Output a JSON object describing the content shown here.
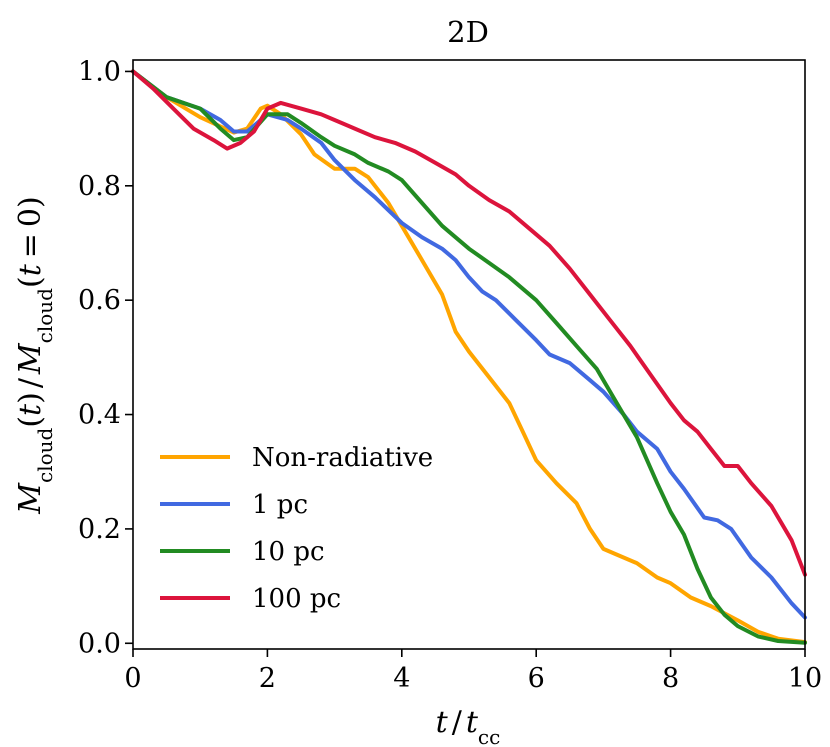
{
  "chart_data": {
    "type": "line",
    "title": "2D",
    "xlabel": "t / t_cc",
    "ylabel": "M_cloud(t) / M_cloud(t = 0)",
    "xlim": [
      0,
      10
    ],
    "ylim": [
      -0.01,
      1.02
    ],
    "xticks": [
      "0",
      "2",
      "4",
      "6",
      "8",
      "10"
    ],
    "yticks": [
      "0.0",
      "0.2",
      "0.4",
      "0.6",
      "0.8",
      "1.0"
    ],
    "xtick_values": [
      0,
      2,
      4,
      6,
      8,
      10
    ],
    "ytick_values": [
      0.0,
      0.2,
      0.4,
      0.6,
      0.8,
      1.0
    ],
    "legend_position": "lower-left",
    "series": [
      {
        "name": "Non-radiative",
        "color": "#ffa500",
        "x": [
          0,
          0.5,
          1.0,
          1.5,
          1.7,
          1.9,
          2.0,
          2.2,
          2.5,
          2.7,
          3.0,
          3.3,
          3.5,
          3.8,
          4.0,
          4.3,
          4.6,
          4.8,
          5.0,
          5.3,
          5.6,
          5.8,
          6.0,
          6.3,
          6.6,
          6.8,
          7.0,
          7.2,
          7.5,
          7.8,
          8.0,
          8.3,
          8.6,
          9.0,
          9.3,
          9.6,
          10.0
        ],
        "values": [
          1.0,
          0.955,
          0.92,
          0.893,
          0.9,
          0.935,
          0.94,
          0.925,
          0.89,
          0.855,
          0.83,
          0.83,
          0.815,
          0.77,
          0.73,
          0.67,
          0.61,
          0.545,
          0.51,
          0.465,
          0.42,
          0.37,
          0.32,
          0.28,
          0.245,
          0.2,
          0.165,
          0.155,
          0.14,
          0.115,
          0.105,
          0.08,
          0.065,
          0.04,
          0.02,
          0.008,
          0.002
        ]
      },
      {
        "name": "1 pc",
        "color": "#4169e1",
        "x": [
          0,
          0.5,
          1.0,
          1.3,
          1.5,
          1.7,
          2.0,
          2.3,
          2.5,
          2.8,
          3.0,
          3.3,
          3.6,
          4.0,
          4.3,
          4.6,
          4.8,
          5.0,
          5.2,
          5.4,
          5.7,
          6.0,
          6.2,
          6.5,
          6.8,
          7.0,
          7.3,
          7.5,
          7.8,
          8.0,
          8.2,
          8.5,
          8.7,
          8.9,
          9.2,
          9.5,
          9.8,
          10.0
        ],
        "values": [
          1.0,
          0.955,
          0.935,
          0.915,
          0.895,
          0.895,
          0.925,
          0.915,
          0.9,
          0.875,
          0.845,
          0.81,
          0.78,
          0.735,
          0.71,
          0.69,
          0.67,
          0.64,
          0.615,
          0.6,
          0.565,
          0.53,
          0.505,
          0.49,
          0.46,
          0.44,
          0.4,
          0.37,
          0.34,
          0.3,
          0.27,
          0.22,
          0.215,
          0.2,
          0.15,
          0.115,
          0.07,
          0.045
        ]
      },
      {
        "name": "10 pc",
        "color": "#228b22",
        "x": [
          0,
          0.5,
          1.0,
          1.3,
          1.5,
          1.7,
          2.0,
          2.3,
          2.5,
          2.8,
          3.0,
          3.3,
          3.5,
          3.8,
          4.0,
          4.3,
          4.6,
          4.8,
          5.0,
          5.3,
          5.6,
          6.0,
          6.3,
          6.6,
          6.9,
          7.2,
          7.5,
          7.8,
          8.0,
          8.2,
          8.4,
          8.6,
          8.8,
          9.0,
          9.3,
          9.6,
          10.0
        ],
        "values": [
          1.0,
          0.955,
          0.935,
          0.9,
          0.88,
          0.885,
          0.925,
          0.925,
          0.91,
          0.885,
          0.87,
          0.855,
          0.84,
          0.825,
          0.81,
          0.77,
          0.73,
          0.71,
          0.69,
          0.665,
          0.64,
          0.6,
          0.56,
          0.52,
          0.48,
          0.42,
          0.36,
          0.28,
          0.23,
          0.19,
          0.13,
          0.08,
          0.05,
          0.03,
          0.012,
          0.004,
          0.001
        ]
      },
      {
        "name": "100 pc",
        "color": "#dc143c",
        "x": [
          0,
          0.3,
          0.6,
          0.9,
          1.2,
          1.4,
          1.6,
          1.8,
          2.0,
          2.2,
          2.5,
          2.8,
          3.0,
          3.3,
          3.6,
          3.9,
          4.2,
          4.5,
          4.8,
          5.0,
          5.3,
          5.6,
          5.9,
          6.2,
          6.5,
          6.8,
          7.1,
          7.4,
          7.7,
          8.0,
          8.2,
          8.4,
          8.6,
          8.8,
          9.0,
          9.2,
          9.5,
          9.8,
          10.0
        ],
        "values": [
          1.0,
          0.97,
          0.935,
          0.9,
          0.88,
          0.865,
          0.875,
          0.895,
          0.935,
          0.945,
          0.935,
          0.925,
          0.915,
          0.9,
          0.885,
          0.875,
          0.86,
          0.84,
          0.82,
          0.8,
          0.775,
          0.755,
          0.725,
          0.695,
          0.655,
          0.61,
          0.565,
          0.52,
          0.47,
          0.42,
          0.39,
          0.37,
          0.34,
          0.31,
          0.31,
          0.28,
          0.24,
          0.18,
          0.12
        ]
      }
    ]
  }
}
